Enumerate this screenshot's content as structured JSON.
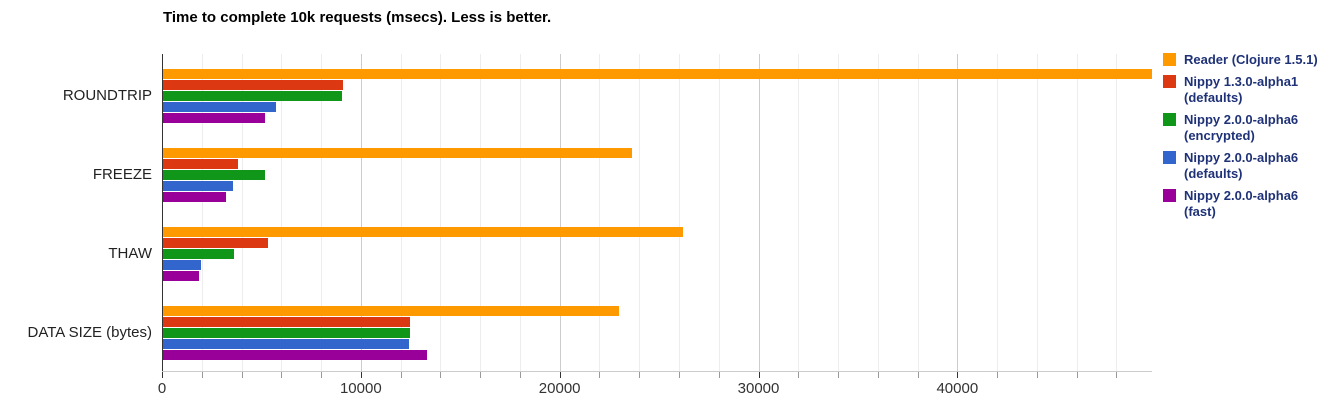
{
  "page": {
    "background": "#ffffff"
  },
  "chart_data": {
    "type": "bar",
    "orientation": "horizontal",
    "title": "Time to complete 10k requests (msecs). Less is better.",
    "categories": [
      "ROUNDTRIP",
      "FREEZE",
      "THAW",
      "DATA SIZE (bytes)"
    ],
    "series": [
      {
        "name": "Reader (Clojure 1.5.1)",
        "legend_lines": [
          "Reader (Clojure 1.5.1)"
        ],
        "color": "#FF9900",
        "values": [
          49740,
          23580,
          26150,
          22930
        ]
      },
      {
        "name": "Nippy 1.3.0-alpha1 (defaults)",
        "legend_lines": [
          "Nippy 1.3.0-alpha1",
          "(defaults)"
        ],
        "color": "#DC3912",
        "values": [
          9040,
          3790,
          5270,
          12400
        ]
      },
      {
        "name": "Nippy 2.0.0-alpha6 (encrypted)",
        "legend_lines": [
          "Nippy 2.0.0-alpha6",
          "(encrypted)"
        ],
        "color": "#109618",
        "values": [
          8980,
          5130,
          3550,
          12430
        ]
      },
      {
        "name": "Nippy 2.0.0-alpha6 (defaults)",
        "legend_lines": [
          "Nippy 2.0.0-alpha6",
          "(defaults)"
        ],
        "color": "#3366CC",
        "values": [
          5670,
          3510,
          1900,
          12350
        ]
      },
      {
        "name": "Nippy 2.0.0-alpha6 (fast)",
        "legend_lines": [
          "Nippy 2.0.0-alpha6 (fast)"
        ],
        "color": "#990099",
        "values": [
          5150,
          3150,
          1790,
          13300
        ]
      }
    ],
    "x_axis": {
      "ticks": [
        {
          "value": 0,
          "label": "0"
        },
        {
          "value": 10000,
          "label": "10000"
        },
        {
          "value": 20000,
          "label": "20000"
        },
        {
          "value": 30000,
          "label": "30000"
        },
        {
          "value": 40000,
          "label": "40000"
        }
      ],
      "minor_step": 2000,
      "minor_max": 48000,
      "range": [
        0,
        49740
      ]
    },
    "xlabel": "",
    "ylabel": "",
    "grid": true,
    "legend_position": "right",
    "legend_text_color": "#1F3277"
  }
}
